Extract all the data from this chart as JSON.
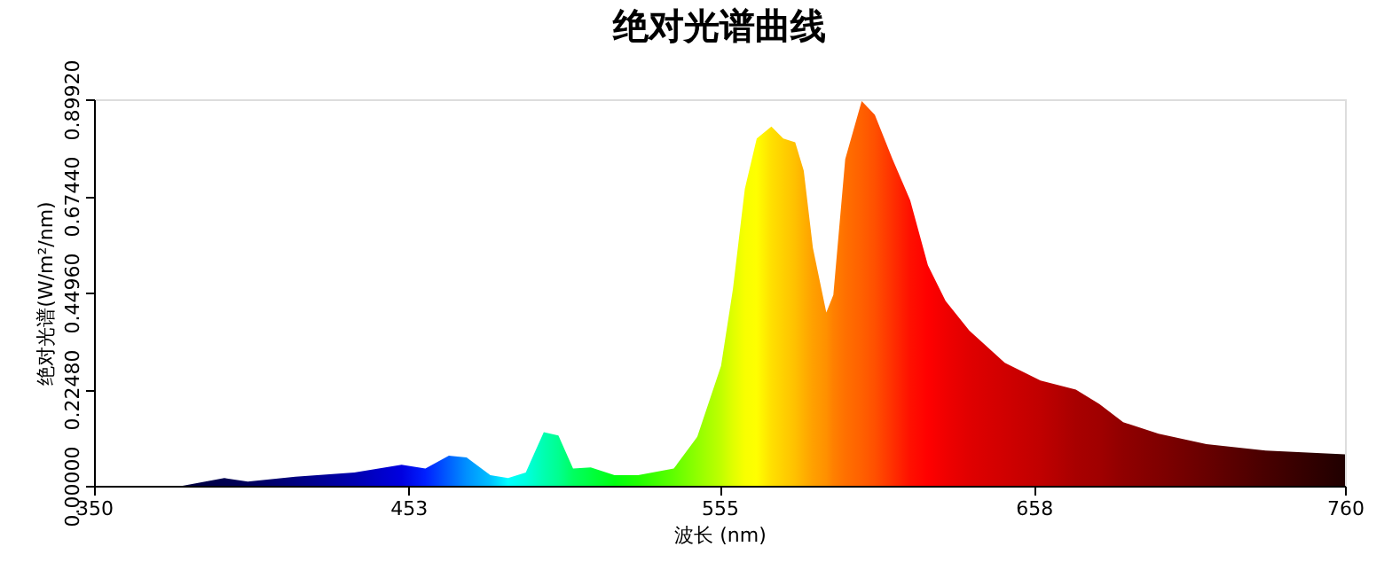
{
  "chart_data": {
    "type": "area",
    "title": "绝对光谱曲线",
    "xlabel": "波长 (nm)",
    "ylabel": "绝对光谱(W/m²/nm)",
    "xlim": [
      350,
      760
    ],
    "xticks": [
      350,
      453,
      555,
      658,
      760
    ],
    "ylim": [
      0,
      0.8992
    ],
    "yticks": [
      {
        "value": 0,
        "label": "0.00000"
      },
      {
        "value": 0.2248,
        "label": "0.22480"
      },
      {
        "value": 0.4496,
        "label": "0.44960"
      },
      {
        "value": 0.6744,
        "label": "0.67440"
      },
      {
        "value": 0.8992,
        "label": "0.89920"
      }
    ],
    "grid": false,
    "series": [
      {
        "x": [
          379,
          392.7,
          400.4,
          416,
          435.3,
          450.8,
          458.6,
          466.3,
          472.1,
          479.9,
          485.7,
          491.5,
          497.4,
          502.2,
          507,
          512.8,
          520.6,
          528.3,
          540,
          547.7,
          555.5,
          559.4,
          563.3,
          567.2,
          572,
          575.9,
          579.8,
          582.6,
          585.6,
          590,
          592.3,
          596.2,
          601.6,
          605.9,
          611.7,
          617.5,
          623.3,
          629.1,
          636.9,
          648.5,
          660.2,
          671.8,
          679.5,
          687.3,
          698.9,
          714.6,
          734,
          760
        ],
        "values": [
          0,
          0.018,
          0.01,
          0.021,
          0.031,
          0.049,
          0.04,
          0.07,
          0.066,
          0.025,
          0.018,
          0.031,
          0.125,
          0.117,
          0.04,
          0.043,
          0.025,
          0.025,
          0.04,
          0.114,
          0.279,
          0.458,
          0.691,
          0.808,
          0.836,
          0.808,
          0.799,
          0.733,
          0.554,
          0.403,
          0.444,
          0.76,
          0.895,
          0.863,
          0.76,
          0.664,
          0.513,
          0.43,
          0.361,
          0.286,
          0.245,
          0.224,
          0.19,
          0.148,
          0.121,
          0.097,
          0.082,
          0.073
        ],
        "colors": [
          "#000040",
          "#000050",
          "#00005a",
          "#000080",
          "#0000b0",
          "#0000e0",
          "#0020ff",
          "#0060ff",
          "#0090ff",
          "#00c0ff",
          "#00ffff",
          "#00ffe0",
          "#00ffb0",
          "#00ff90",
          "#00ff60",
          "#00ff40",
          "#00ff10",
          "#20ff00",
          "#60ff00",
          "#90ff00",
          "#c0ff00",
          "#e0ff00",
          "#f8ff00",
          "#ffff00",
          "#ffe000",
          "#ffd000",
          "#ffc000",
          "#ffb000",
          "#ffa000",
          "#ff9000",
          "#ff8000",
          "#ff7000",
          "#ff6000",
          "#ff5000",
          "#ff3000",
          "#ff1000",
          "#ff0000",
          "#f00000",
          "#e00000",
          "#d00000",
          "#c00000",
          "#a80000",
          "#a00000",
          "#900000",
          "#800000",
          "#680000",
          "#480000",
          "#200000"
        ]
      }
    ]
  }
}
